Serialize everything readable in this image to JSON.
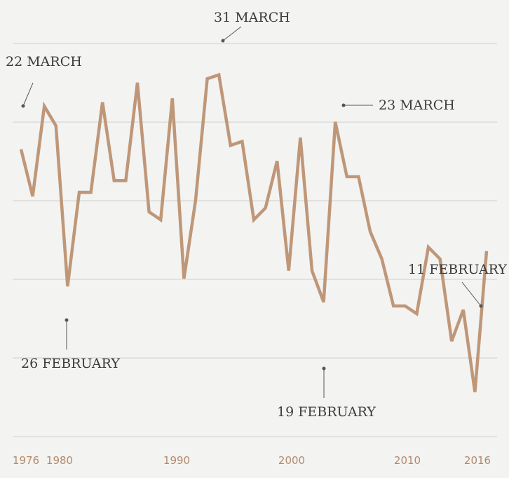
{
  "chart_data": {
    "type": "line",
    "title": "",
    "xlabel": "",
    "ylabel": "",
    "grid": true,
    "x_tick_labels": [
      "1976",
      "1980",
      "1990",
      "2000",
      "2010",
      "2016"
    ],
    "x": [
      1976,
      1977,
      1978,
      1979,
      1980,
      1981,
      1982,
      1983,
      1984,
      1985,
      1986,
      1987,
      1988,
      1989,
      1990,
      1991,
      1992,
      1993,
      1994,
      1995,
      1996,
      1997,
      1998,
      1999,
      2000,
      2001,
      2002,
      2003,
      2004,
      2005,
      2006,
      2007,
      2008,
      2009,
      2010,
      2011,
      2012,
      2013,
      2014,
      2015,
      2016
    ],
    "series": [
      {
        "values": [
          73,
          61,
          84,
          79,
          38,
          62,
          62,
          85,
          65,
          65,
          90,
          57,
          55,
          86,
          40,
          60,
          91,
          92,
          74,
          75,
          55,
          58,
          70,
          42,
          76,
          42,
          34,
          80,
          66,
          66,
          52,
          45,
          33,
          33,
          31,
          48,
          45,
          24,
          32,
          11,
          47
        ]
      }
    ],
    "ylim": [
      0,
      100
    ],
    "annotations": [
      {
        "label": "22 MARCH",
        "year": 1976
      },
      {
        "label": "26 FEBRUARY",
        "year": 1980
      },
      {
        "label": "31 MARCH",
        "year": 1994
      },
      {
        "label": "19 FEBRUARY",
        "year": 2003
      },
      {
        "label": "23 MARCH",
        "year": 2004
      },
      {
        "label": "11 FEBRUARY",
        "year": 2016
      }
    ]
  },
  "colors": {
    "line": "#bf9778",
    "tick_text": "#b58a6b",
    "grid": "#cfcfcf",
    "annotation_text": "#3c3c3c"
  }
}
